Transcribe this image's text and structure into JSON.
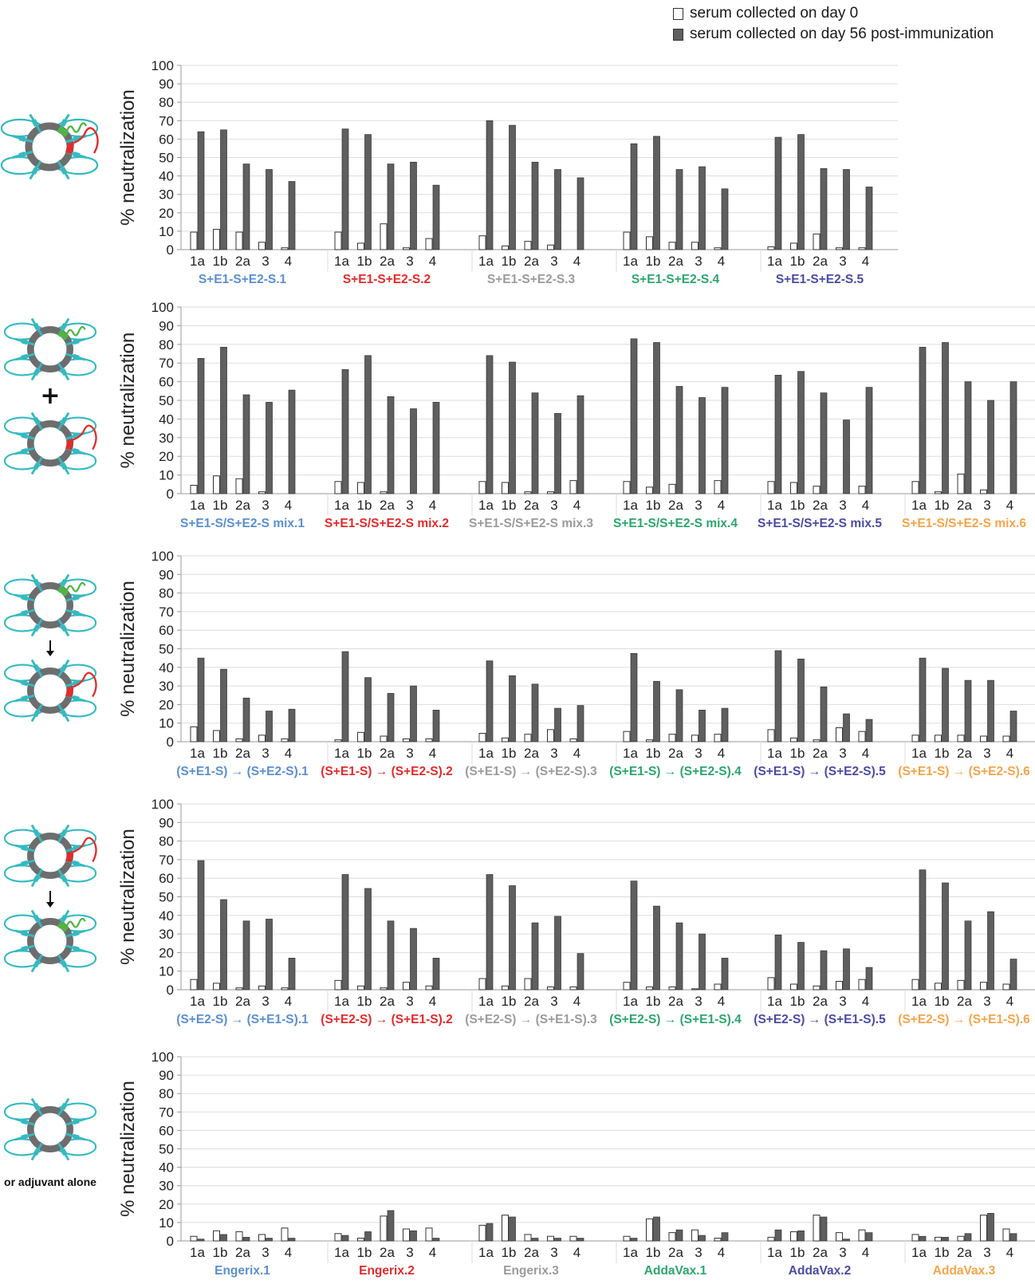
{
  "legend": {
    "day0": "serum collected on day 0",
    "day56": "serum collected on day 56 post-immunization",
    "day0_color": "#ffffff",
    "day56_color": "#5f5f5f"
  },
  "side_labels": [
    "",
    "",
    "",
    "",
    "or adjuvant alone"
  ],
  "colors": {
    "blue": "#5b8fd1",
    "red": "#e22b2b",
    "gray": "#9b9b9b",
    "green": "#2ca56e",
    "purple": "#4b4ba3",
    "orange": "#f5a44a",
    "teal": "#35b9c1",
    "ring": "#6d6d6d",
    "leaf_green": "#4fb543",
    "leaf_red": "#e22b2b"
  },
  "chart_data": [
    {
      "type": "bar",
      "ylabel": "% neutralization",
      "ylim": [
        0,
        100
      ],
      "yticks": [
        "0",
        "10",
        "20",
        "30",
        "40",
        "50",
        "60",
        "70",
        "80",
        "90",
        "100"
      ],
      "categories": [
        "1a",
        "1b",
        "2a",
        "3",
        "4"
      ],
      "groups": [
        {
          "label": "S+E1-S+E2-S.1",
          "color": "blue",
          "day0": [
            9.5,
            11,
            9.5,
            4,
            1
          ],
          "day56": [
            64,
            65,
            46.5,
            43.5,
            37
          ]
        },
        {
          "label": "S+E1-S+E2-S.2",
          "color": "red",
          "day0": [
            9.5,
            3.5,
            14,
            1,
            6
          ],
          "day56": [
            65.5,
            62.5,
            46.5,
            47.5,
            35
          ]
        },
        {
          "label": "S+E1-S+E2-S.3",
          "color": "gray",
          "day0": [
            7.5,
            2,
            4.5,
            2.5,
            0
          ],
          "day56": [
            70,
            67.5,
            47.5,
            43.5,
            39
          ]
        },
        {
          "label": "S+E1-S+E2-S.4",
          "color": "green",
          "day0": [
            9.5,
            7,
            4,
            4,
            1
          ],
          "day56": [
            57.5,
            61.5,
            43.5,
            45,
            33
          ]
        },
        {
          "label": "S+E1-S+E2-S.5",
          "color": "purple",
          "day0": [
            1.5,
            3.5,
            8.5,
            1,
            1
          ],
          "day56": [
            61,
            62.5,
            44,
            43.5,
            34
          ]
        }
      ]
    },
    {
      "type": "bar",
      "ylabel": "% neutralization",
      "ylim": [
        0,
        100
      ],
      "yticks": [
        "0",
        "10",
        "20",
        "30",
        "40",
        "50",
        "60",
        "70",
        "80",
        "90",
        "100"
      ],
      "categories": [
        "1a",
        "1b",
        "2a",
        "3",
        "4"
      ],
      "groups": [
        {
          "label": "S+E1-S/S+E2-S mix.1",
          "color": "blue",
          "day0": [
            4.5,
            9.5,
            8,
            1,
            0
          ],
          "day56": [
            72.5,
            78.5,
            53,
            49,
            55.5
          ]
        },
        {
          "label": "S+E1-S/S+E2-S mix.2",
          "color": "red",
          "day0": [
            6.5,
            6,
            1,
            0,
            0
          ],
          "day56": [
            66.5,
            74,
            52,
            45.5,
            49
          ]
        },
        {
          "label": "S+E1-S/S+E2-S mix.3",
          "color": "gray",
          "day0": [
            6.5,
            6,
            1,
            1,
            7
          ],
          "day56": [
            74,
            70.5,
            54,
            43,
            52.5
          ]
        },
        {
          "label": "S+E1-S/S+E2-S mix.4",
          "color": "green",
          "day0": [
            6.5,
            3.5,
            5,
            0,
            7
          ],
          "day56": [
            83,
            81,
            57.5,
            51.5,
            57
          ]
        },
        {
          "label": "S+E1-S/S+E2-S mix.5",
          "color": "purple",
          "day0": [
            6.5,
            6,
            4,
            0,
            4
          ],
          "day56": [
            63.5,
            65.5,
            54,
            39.5,
            57
          ]
        },
        {
          "label": "S+E1-S/S+E2-S mix.6",
          "color": "orange",
          "day0": [
            6.5,
            1,
            10.5,
            2,
            0
          ],
          "day56": [
            78.5,
            81,
            60,
            50,
            60
          ]
        }
      ]
    },
    {
      "type": "bar",
      "ylabel": "% neutralization",
      "ylim": [
        0,
        100
      ],
      "yticks": [
        "0",
        "10",
        "20",
        "30",
        "40",
        "50",
        "60",
        "70",
        "80",
        "90",
        "100"
      ],
      "categories": [
        "1a",
        "1b",
        "2a",
        "3",
        "4"
      ],
      "groups": [
        {
          "label": "(S+E1-S)",
          "label2": "(S+E2-S).1",
          "arrow": "→",
          "color": "blue",
          "day0": [
            8,
            6,
            1.5,
            3.5,
            1.5
          ],
          "day56": [
            45,
            39,
            23.5,
            16.5,
            17.5
          ]
        },
        {
          "label": "(S+E1-S)",
          "label2": "(S+E2-S).2",
          "arrow": "→",
          "color": "red",
          "day0": [
            1,
            5,
            3,
            1.5,
            1.5
          ],
          "day56": [
            48.5,
            34.5,
            26,
            30,
            17
          ]
        },
        {
          "label": "(S+E1-S)",
          "label2": "(S+E2-S).3",
          "arrow": "→",
          "color": "gray",
          "day0": [
            4.5,
            2,
            4,
            6.5,
            1.5
          ],
          "day56": [
            43.5,
            35.5,
            31,
            18,
            19.5
          ]
        },
        {
          "label": "(S+E1-S)",
          "label2": "(S+E2-S).4",
          "arrow": "→",
          "color": "green",
          "day0": [
            5.5,
            1,
            4,
            3.5,
            4
          ],
          "day56": [
            47.5,
            32.5,
            28,
            17,
            18
          ]
        },
        {
          "label": "(S+E1-S)",
          "label2": "(S+E2-S).5",
          "arrow": "→",
          "color": "purple",
          "day0": [
            6.5,
            2,
            1,
            7.5,
            5.5
          ],
          "day56": [
            49,
            44.5,
            29.5,
            15,
            12
          ]
        },
        {
          "label": "(S+E1-S)",
          "label2": "(S+E2-S).6",
          "arrow": "→",
          "color": "orange",
          "day0": [
            3.5,
            3.5,
            3.5,
            3,
            3
          ],
          "day56": [
            45,
            39.5,
            33,
            33,
            16.5
          ]
        }
      ]
    },
    {
      "type": "bar",
      "ylabel": "% neutralization",
      "ylim": [
        0,
        100
      ],
      "yticks": [
        "0",
        "10",
        "20",
        "30",
        "40",
        "50",
        "60",
        "70",
        "80",
        "90",
        "100"
      ],
      "categories": [
        "1a",
        "1b",
        "2a",
        "3",
        "4"
      ],
      "groups": [
        {
          "label": "(S+E2-S)",
          "label2": "(S+E1-S).1",
          "arrow": "→",
          "color": "blue",
          "day0": [
            5.5,
            3.5,
            1,
            2,
            1
          ],
          "day56": [
            69.5,
            48.5,
            37,
            38,
            17
          ]
        },
        {
          "label": "(S+E2-S)",
          "label2": "(S+E1-S).2",
          "arrow": "→",
          "color": "red",
          "day0": [
            5,
            2,
            1,
            4,
            2
          ],
          "day56": [
            62,
            54.5,
            37,
            33,
            17
          ]
        },
        {
          "label": "(S+E2-S)",
          "label2": "(S+E1-S).3",
          "arrow": "→",
          "color": "gray",
          "day0": [
            6,
            2,
            6,
            1.5,
            1.5
          ],
          "day56": [
            62,
            56,
            36,
            39.5,
            19.5
          ]
        },
        {
          "label": "(S+E2-S)",
          "label2": "(S+E1-S).4",
          "arrow": "→",
          "color": "green",
          "day0": [
            4,
            1.5,
            1.5,
            0.5,
            3
          ],
          "day56": [
            58.5,
            45,
            36,
            30,
            17
          ]
        },
        {
          "label": "(S+E2-S)",
          "label2": "(S+E1-S).5",
          "arrow": "→",
          "color": "purple",
          "day0": [
            6.5,
            3,
            2,
            4.5,
            5.5
          ],
          "day56": [
            29.5,
            25.5,
            21,
            22,
            12
          ]
        },
        {
          "label": "(S+E2-S)",
          "label2": "(S+E1-S).6",
          "arrow": "→",
          "color": "orange",
          "day0": [
            5.5,
            3.5,
            5,
            4,
            3
          ],
          "day56": [
            64.5,
            57.5,
            37,
            42,
            16.5
          ]
        }
      ]
    },
    {
      "type": "bar",
      "ylabel": "% neutralization",
      "ylim": [
        0,
        100
      ],
      "yticks": [
        "0",
        "10",
        "20",
        "30",
        "40",
        "50",
        "60",
        "70",
        "80",
        "90",
        "100"
      ],
      "categories": [
        "1a",
        "1b",
        "2a",
        "3",
        "4"
      ],
      "groups": [
        {
          "label": "Engerix.1",
          "color": "blue",
          "day0": [
            2.5,
            5.5,
            5,
            3.5,
            7
          ],
          "day56": [
            1,
            3.5,
            2,
            1.5,
            1.5
          ]
        },
        {
          "label": "Engerix.2",
          "color": "red",
          "day0": [
            4,
            1.5,
            13.5,
            6.5,
            7
          ],
          "day56": [
            3,
            5,
            16.5,
            5.5,
            1.5
          ]
        },
        {
          "label": "Engerix.3",
          "color": "gray",
          "day0": [
            8.5,
            14,
            3.5,
            2.5,
            2.5
          ],
          "day56": [
            9.5,
            13,
            1.5,
            1.5,
            1.5
          ]
        },
        {
          "label": "AddaVax.1",
          "color": "green",
          "day0": [
            2.5,
            12,
            4.5,
            6,
            1.5
          ],
          "day56": [
            1.5,
            13,
            6,
            3,
            4.5
          ]
        },
        {
          "label": "AddaVax.2",
          "color": "purple",
          "day0": [
            2,
            5,
            14,
            4.5,
            6
          ],
          "day56": [
            6,
            5.5,
            13,
            1,
            4.5
          ]
        },
        {
          "label": "AddaVax.3",
          "color": "orange",
          "day0": [
            3.5,
            2,
            2.5,
            14,
            6.5
          ],
          "day56": [
            2.5,
            2,
            4,
            15,
            4
          ]
        }
      ]
    }
  ]
}
